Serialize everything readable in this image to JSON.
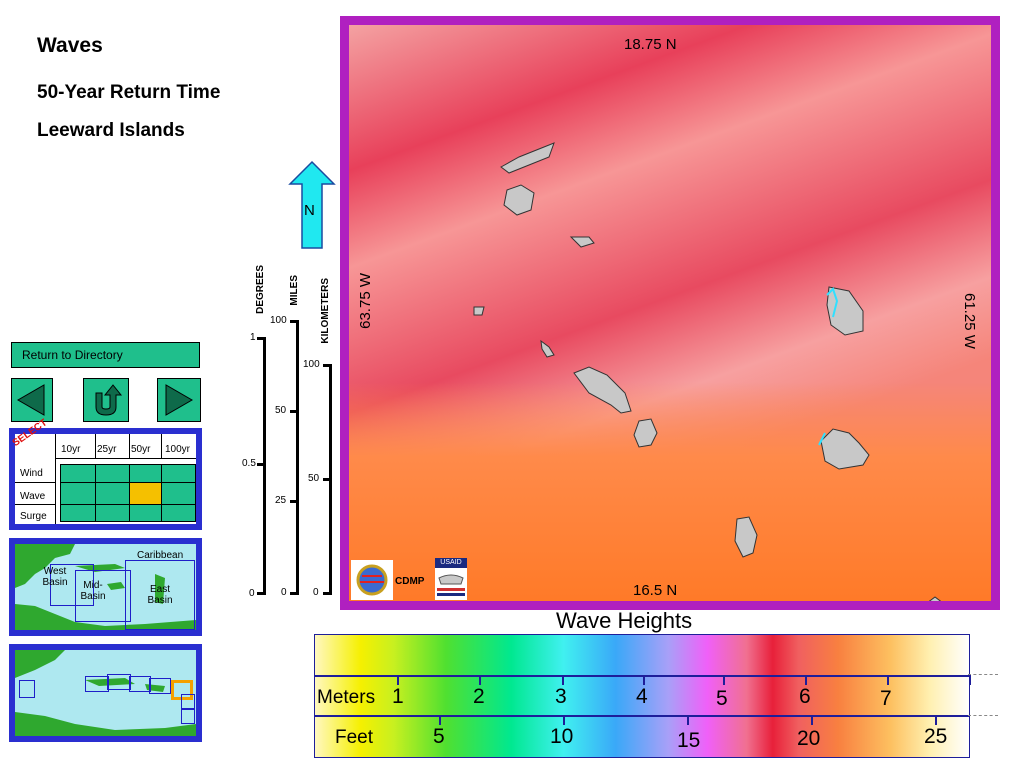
{
  "header": {
    "title": "Waves",
    "subtitle": "50-Year Return Time",
    "region": "Leeward Islands"
  },
  "nav": {
    "directory_label": "Return to Directory",
    "prev_icon": "left-triangle-icon",
    "up_icon": "u-turn-arrow-icon",
    "next_icon": "right-triangle-icon"
  },
  "selector": {
    "select_label": "SELECT",
    "columns": [
      "10yr",
      "25yr",
      "50yr",
      "100yr"
    ],
    "rows": [
      "Wind",
      "Wave",
      "Surge"
    ],
    "selected": {
      "row": "Wave",
      "column": "50yr"
    }
  },
  "basin_map": {
    "caribbean_label": "Caribbean",
    "west_label": "West Basin",
    "mid_label": "Mid- Basin",
    "east_label": "East Basin"
  },
  "compass": {
    "label": "N"
  },
  "scales": {
    "degrees": {
      "label": "DEGREES",
      "ticks": [
        "1",
        "0.5",
        "0"
      ]
    },
    "miles": {
      "label": "MILES",
      "ticks": [
        "100",
        "50",
        "25",
        "0"
      ]
    },
    "kilometers": {
      "label": "KILOMETERS",
      "ticks": [
        "100",
        "50",
        "0"
      ]
    }
  },
  "map": {
    "north_label": "18.75 N",
    "south_label": "16.5 N",
    "west_label": "63.75 W",
    "east_label": "61.25 W",
    "logo_text": "CDMP",
    "usaid_text": "USAID",
    "frame_color": "#b020c0"
  },
  "legend": {
    "title": "Wave Heights",
    "meters_label": "Meters",
    "meters_ticks": [
      "1",
      "2",
      "3",
      "4",
      "5",
      "6",
      "7"
    ],
    "feet_label": "Feet",
    "feet_ticks": [
      "5",
      "10",
      "15",
      "20",
      "25"
    ]
  }
}
